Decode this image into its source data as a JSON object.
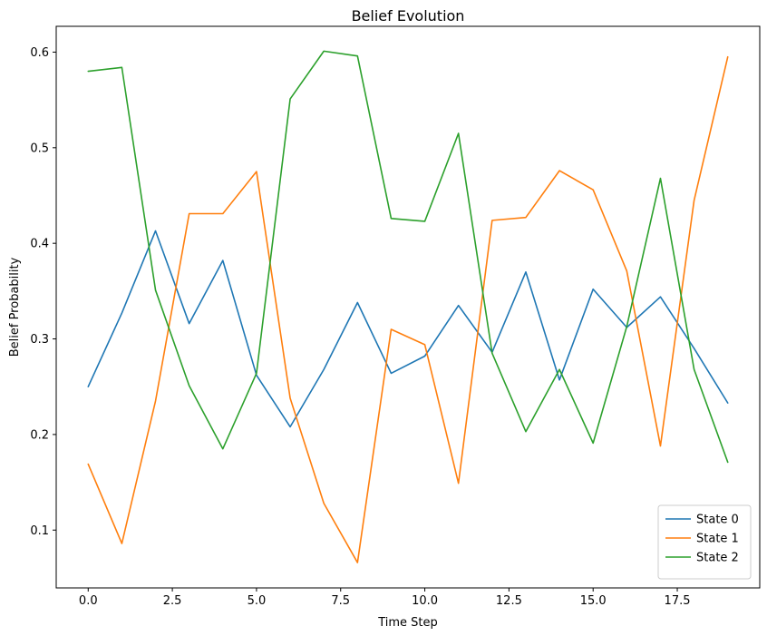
{
  "chart_data": {
    "type": "line",
    "title": "Belief Evolution",
    "xlabel": "Time Step",
    "ylabel": "Belief Probability",
    "xlim": [
      -0.95,
      19.95
    ],
    "ylim": [
      0.0395,
      0.627
    ],
    "xticks": [
      0.0,
      2.5,
      5.0,
      7.5,
      10.0,
      12.5,
      15.0,
      17.5
    ],
    "xtick_labels": [
      "0.0",
      "2.5",
      "5.0",
      "7.5",
      "10.0",
      "12.5",
      "15.0",
      "17.5"
    ],
    "yticks": [
      0.1,
      0.2,
      0.3,
      0.4,
      0.5,
      0.6
    ],
    "ytick_labels": [
      "0.1",
      "0.2",
      "0.3",
      "0.4",
      "0.5",
      "0.6"
    ],
    "grid": false,
    "legend_position": "bottom-right",
    "x": [
      0,
      1,
      2,
      3,
      4,
      5,
      6,
      7,
      8,
      9,
      10,
      11,
      12,
      13,
      14,
      15,
      16,
      17,
      18,
      19
    ],
    "series": [
      {
        "name": "State 0",
        "color": "#1f77b4",
        "values": [
          0.25,
          0.327,
          0.413,
          0.316,
          0.382,
          0.262,
          0.208,
          0.268,
          0.338,
          0.264,
          0.282,
          0.335,
          0.286,
          0.37,
          0.257,
          0.352,
          0.312,
          0.344,
          0.29,
          0.233
        ]
      },
      {
        "name": "State 1",
        "color": "#ff7f0e",
        "values": [
          0.169,
          0.086,
          0.235,
          0.431,
          0.431,
          0.475,
          0.238,
          0.128,
          0.066,
          0.31,
          0.294,
          0.149,
          0.424,
          0.427,
          0.476,
          0.456,
          0.371,
          0.188,
          0.445,
          0.595
        ]
      },
      {
        "name": "State 2",
        "color": "#2ca02c",
        "values": [
          0.58,
          0.584,
          0.351,
          0.251,
          0.185,
          0.264,
          0.551,
          0.601,
          0.596,
          0.426,
          0.423,
          0.515,
          0.285,
          0.203,
          0.268,
          0.191,
          0.313,
          0.468,
          0.268,
          0.171
        ]
      }
    ]
  }
}
